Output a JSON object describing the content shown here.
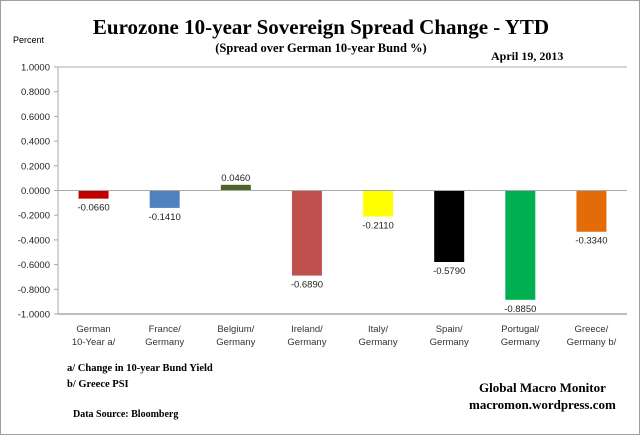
{
  "chart_data": {
    "type": "bar",
    "title": "Eurozone 10-year Sovereign Spread Change - YTD",
    "subtitle": "(Spread over German 10-year Bund %)",
    "date": "April 19,  2013",
    "ylabel": "Percent",
    "xlabel": "",
    "ylim": [
      -1.0,
      1.0
    ],
    "yticks": [
      1.0,
      0.8,
      0.6,
      0.4,
      0.2,
      0.0,
      -0.2,
      -0.4,
      -0.6,
      -0.8,
      -1.0
    ],
    "ytick_labels": [
      "1.0000",
      "0.8000",
      "0.6000",
      "0.4000",
      "0.2000",
      "0.0000",
      "-0.2000",
      "-0.4000",
      "-0.6000",
      "-0.8000",
      "-1.0000"
    ],
    "grid": false,
    "legend": "none",
    "categories": [
      "German\n10-Year a/",
      "France/\nGermany",
      "Belgium/\nGermany",
      "Ireland/\nGermany",
      "Italy/\nGermany",
      "Spain/\nGermany",
      "Portugal/\nGermany",
      "Greece/\nGermany b/"
    ],
    "values": [
      -0.066,
      -0.141,
      0.046,
      -0.689,
      -0.211,
      -0.579,
      -0.885,
      -0.334
    ],
    "data_labels": [
      "-0.0660",
      "-0.1410",
      "0.0460",
      "-0.6890",
      "-0.2110",
      "-0.5790",
      "-0.8850",
      "-0.3340"
    ],
    "colors": [
      "#c00000",
      "#4f81bd",
      "#4f6228",
      "#c0504d",
      "#ffff00",
      "#000000",
      "#00b050",
      "#e36c09"
    ]
  },
  "footnotes": {
    "a": "a/  Change in 10-year Bund Yield",
    "b": "b/  Greece PSI",
    "source": "Data Source:  Bloomberg"
  },
  "branding": {
    "name": "Global Macro Monitor",
    "site": "macromon.wordpress.com"
  }
}
